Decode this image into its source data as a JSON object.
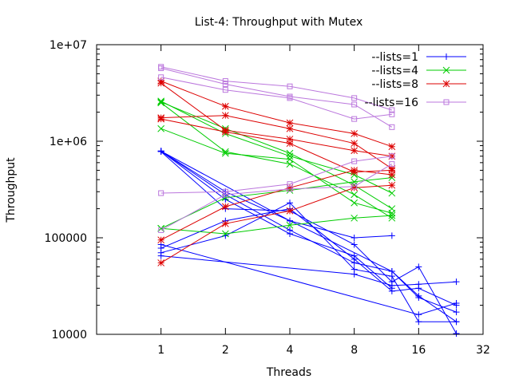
{
  "chart_data": {
    "type": "line",
    "title": "List-4: Throughput with Mutex",
    "xlabel": "Threads",
    "ylabel": "Throughput",
    "x_scale": "log2",
    "y_scale": "log10",
    "xlim": [
      0.5,
      32
    ],
    "ylim": [
      10000,
      10000000
    ],
    "x_ticks": [
      1,
      2,
      4,
      8,
      16,
      32
    ],
    "x_tick_labels": [
      "1",
      "2",
      "4",
      "8",
      "16",
      "32"
    ],
    "y_ticks": [
      10000,
      100000,
      1000000,
      10000000
    ],
    "y_tick_labels": [
      "10000",
      "100000",
      "1e+06",
      "1e+07"
    ],
    "grid": false,
    "legend_position": "top-right",
    "series": [
      {
        "name": "--lists=1",
        "color": "#0000ff",
        "marker": "plus",
        "runs": [
          {
            "x": [
              1,
              2,
              4,
              8,
              12
            ],
            "y": [
              790000,
              300000,
              150000,
              100000,
              105000
            ]
          },
          {
            "x": [
              1,
              2,
              4,
              8,
              12
            ],
            "y": [
              790000,
              250000,
              110000,
              65000,
              30000
            ]
          },
          {
            "x": [
              1,
              4,
              12,
              16,
              24
            ],
            "y": [
              790000,
              150000,
              45000,
              24000,
              17000
            ]
          },
          {
            "x": [
              1,
              2,
              4,
              8,
              12,
              16,
              24
            ],
            "y": [
              790000,
              280000,
              120000,
              55000,
              45000,
              25000,
              13500
            ]
          },
          {
            "x": [
              1,
              2,
              4,
              8,
              12,
              16,
              24
            ],
            "y": [
              780000,
              200000,
              190000,
              85000,
              35000,
              50000,
              10200
            ]
          },
          {
            "x": [
              1,
              2,
              4,
              8,
              12,
              16,
              24
            ],
            "y": [
              78000,
              150000,
              200000,
              60000,
              28000,
              30000,
              20000
            ]
          },
          {
            "x": [
              1,
              2,
              4,
              8,
              12,
              16,
              24
            ],
            "y": [
              70000,
              105000,
              230000,
              47000,
              40000,
              13500,
              13500
            ]
          },
          {
            "x": [
              1,
              8,
              12,
              16,
              24
            ],
            "y": [
              65000,
              42000,
              32000,
              33000,
              35000
            ]
          },
          {
            "x": [
              1,
              16,
              24
            ],
            "y": [
              85000,
              16000,
              21000
            ]
          }
        ]
      },
      {
        "name": "--lists=4",
        "color": "#00cc00",
        "marker": "cross",
        "runs": [
          {
            "x": [
              1,
              2,
              4,
              8,
              12
            ],
            "y": [
              2600000,
              1200000,
              700000,
              450000,
              290000
            ]
          },
          {
            "x": [
              1,
              2,
              4,
              8,
              12
            ],
            "y": [
              2500000,
              780000,
              580000,
              280000,
              160000
            ]
          },
          {
            "x": [
              1,
              2,
              4,
              8,
              12
            ],
            "y": [
              2550000,
              1350000,
              750000,
              350000,
              200000
            ]
          },
          {
            "x": [
              1,
              2,
              4,
              8,
              12
            ],
            "y": [
              1350000,
              750000,
              650000,
              230000,
              180000
            ]
          },
          {
            "x": [
              1,
              2,
              4,
              8,
              12
            ],
            "y": [
              125000,
              260000,
              310000,
              380000,
              420000
            ]
          },
          {
            "x": [
              1,
              2,
              4,
              8,
              12
            ],
            "y": [
              125000,
              110000,
              135000,
              160000,
              170000
            ]
          }
        ]
      },
      {
        "name": "--lists=8",
        "color": "#dd0000",
        "marker": "star",
        "runs": [
          {
            "x": [
              1,
              2,
              4,
              8,
              12
            ],
            "y": [
              4200000,
              2300000,
              1550000,
              1200000,
              880000
            ]
          },
          {
            "x": [
              1,
              2,
              4,
              8,
              12
            ],
            "y": [
              4000000,
              1300000,
              1050000,
              800000,
              700000
            ]
          },
          {
            "x": [
              1,
              2,
              4,
              8,
              12
            ],
            "y": [
              1750000,
              1850000,
              1350000,
              950000,
              520000
            ]
          },
          {
            "x": [
              1,
              2,
              4,
              8,
              12
            ],
            "y": [
              1700000,
              1250000,
              950000,
              480000,
              500000
            ]
          },
          {
            "x": [
              1,
              2,
              4,
              8,
              12
            ],
            "y": [
              95000,
              210000,
              330000,
              500000,
              450000
            ]
          },
          {
            "x": [
              1,
              2,
              4,
              8,
              12
            ],
            "y": [
              55000,
              140000,
              190000,
              330000,
              350000
            ]
          }
        ]
      },
      {
        "name": "--lists=16",
        "color": "#bb77dd",
        "marker": "square",
        "runs": [
          {
            "x": [
              1,
              2,
              4,
              8,
              12
            ],
            "y": [
              5900000,
              4200000,
              3700000,
              2800000,
              2100000
            ]
          },
          {
            "x": [
              1,
              2,
              4,
              8,
              12
            ],
            "y": [
              5700000,
              3900000,
              2900000,
              2400000,
              1400000
            ]
          },
          {
            "x": [
              1,
              2,
              4,
              8,
              12
            ],
            "y": [
              4600000,
              3400000,
              2800000,
              1700000,
              1900000
            ]
          },
          {
            "x": [
              1,
              2,
              4,
              8,
              12
            ],
            "y": [
              290000,
              300000,
              360000,
              620000,
              700000
            ]
          },
          {
            "x": [
              1,
              2,
              4,
              8,
              12
            ],
            "y": [
              120000,
              280000,
              320000,
              340000,
              580000
            ]
          }
        ]
      }
    ]
  }
}
